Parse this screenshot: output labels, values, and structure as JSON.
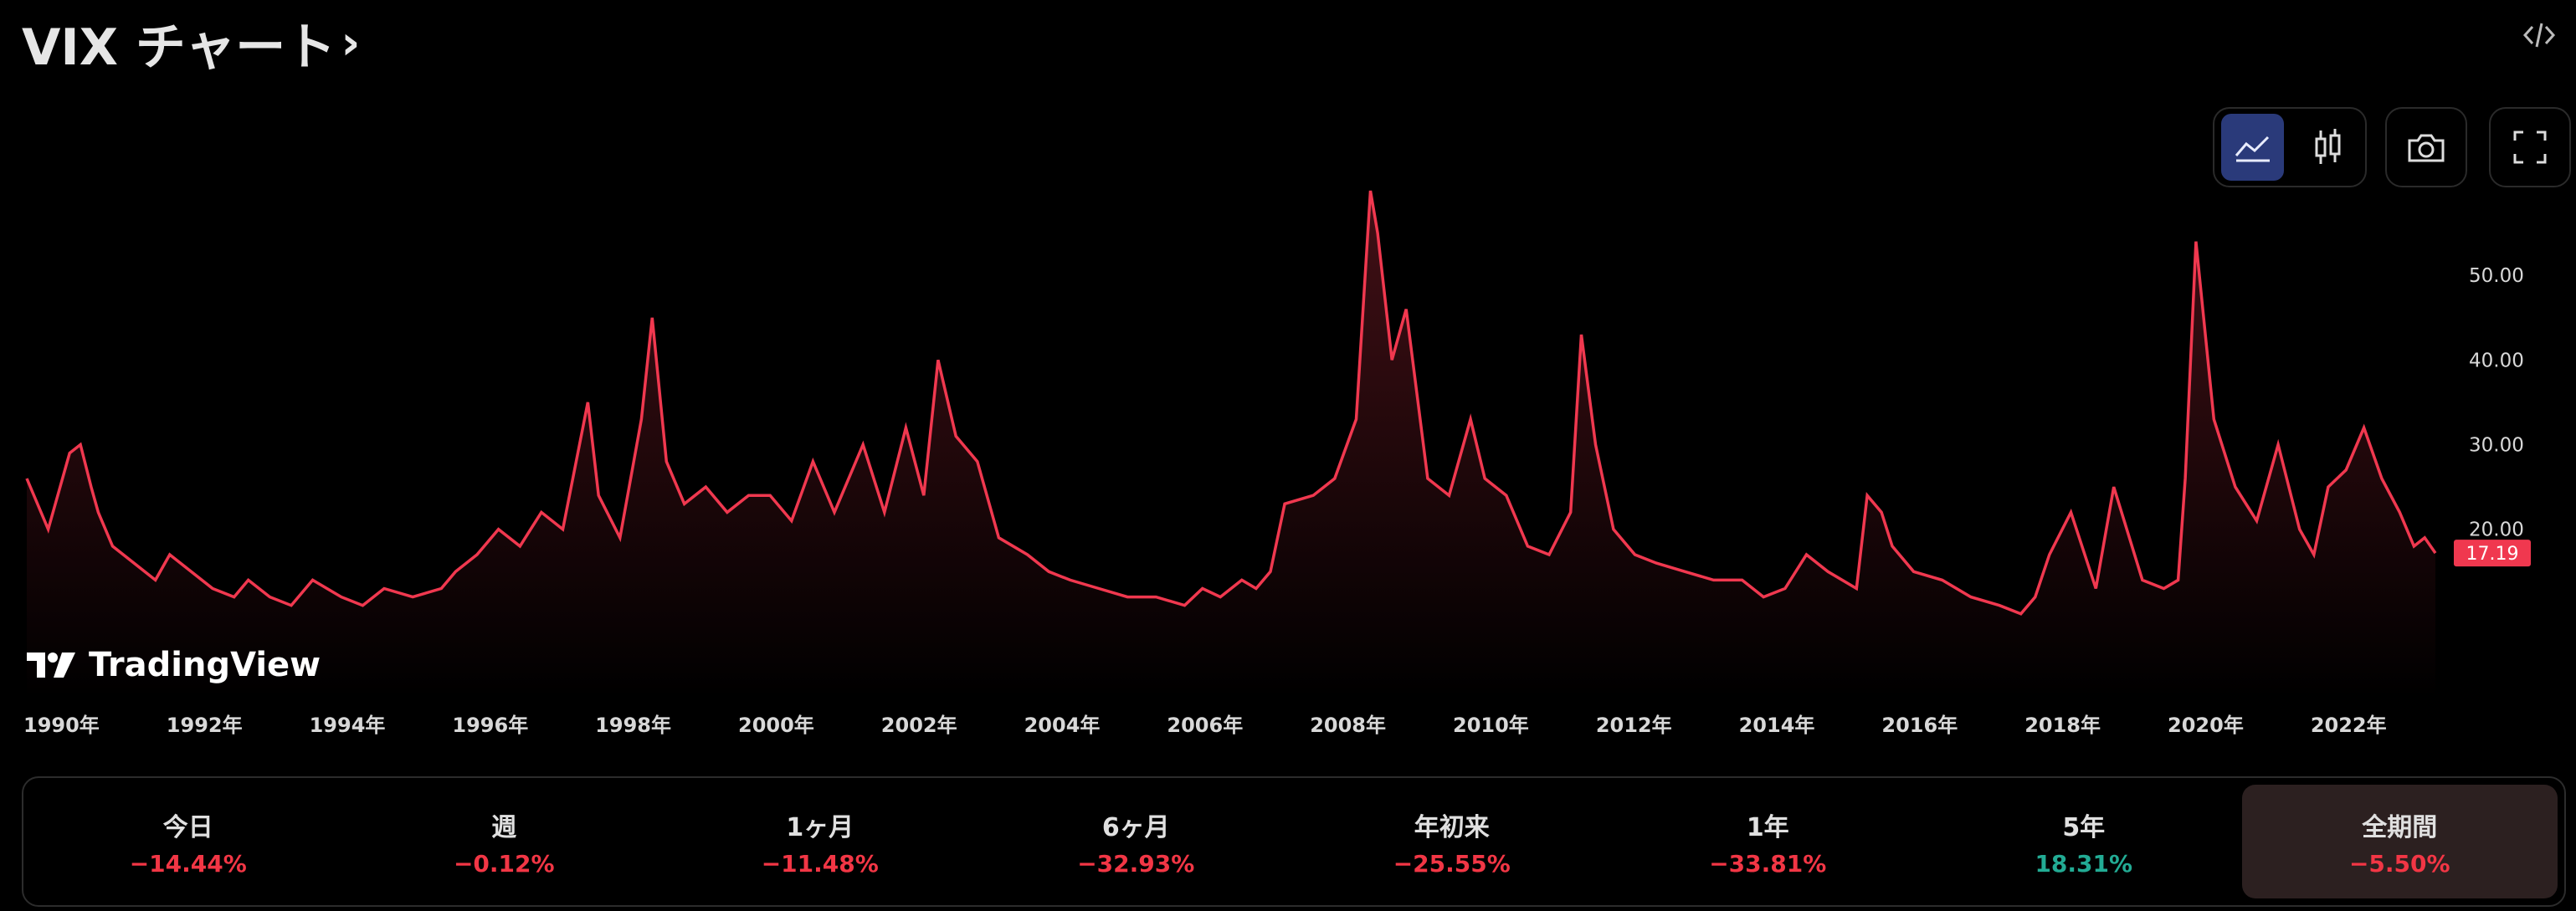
{
  "header": {
    "title": "VIX チャート",
    "chevron": "›",
    "embed_icon": "code-embed-icon"
  },
  "toolbar": {
    "area_chart_icon": "area-chart-icon",
    "candles_icon": "candlestick-icon",
    "snapshot_icon": "camera-icon",
    "fullscreen_icon": "fullscreen-icon"
  },
  "watermark": {
    "text": "TradingView"
  },
  "colors": {
    "line": "#f0384f",
    "last_price_bg": "#f0384f",
    "negative": "#f23645",
    "positive": "#22ab94",
    "active_tab": "#2a3a7a"
  },
  "chart_data": {
    "type": "area",
    "symbol": "VIX",
    "last_value": "17.19",
    "ylim": [
      0,
      60
    ],
    "xlim": [
      1990.0,
      2023.7
    ],
    "y_ticks": [
      "20.00",
      "30.00",
      "40.00",
      "50.00"
    ],
    "x_ticks": [
      "1990年",
      "1992年",
      "1994年",
      "1996年",
      "1998年",
      "2000年",
      "2002年",
      "2004年",
      "2006年",
      "2008年",
      "2010年",
      "2012年",
      "2014年",
      "2016年",
      "2018年",
      "2020年",
      "2022年"
    ],
    "series": [
      {
        "x": [
          1990.0,
          1990.3,
          1990.6,
          1990.75,
          1990.9,
          1991.0,
          1991.2,
          1991.5,
          1991.8,
          1992.0,
          1992.3,
          1992.6,
          1992.9,
          1993.1,
          1993.4,
          1993.7,
          1994.0,
          1994.2,
          1994.4,
          1994.7,
          1995.0,
          1995.4,
          1995.8,
          1996.0,
          1996.3,
          1996.6,
          1996.9,
          1997.2,
          1997.5,
          1997.85,
          1998.0,
          1998.3,
          1998.6,
          1998.75,
          1998.95,
          1999.2,
          1999.5,
          1999.8,
          2000.1,
          2000.4,
          2000.7,
          2001.0,
          2001.3,
          2001.7,
          2002.0,
          2002.3,
          2002.55,
          2002.75,
          2003.0,
          2003.3,
          2003.6,
          2004.0,
          2004.3,
          2004.6,
          2005.0,
          2005.4,
          2005.8,
          2006.2,
          2006.45,
          2006.7,
          2007.0,
          2007.2,
          2007.4,
          2007.6,
          2008.0,
          2008.3,
          2008.6,
          2008.8,
          2008.9,
          2009.1,
          2009.3,
          2009.6,
          2009.9,
          2010.2,
          2010.4,
          2010.7,
          2011.0,
          2011.3,
          2011.6,
          2011.75,
          2011.95,
          2012.2,
          2012.5,
          2012.8,
          2013.2,
          2013.6,
          2014.0,
          2014.3,
          2014.6,
          2014.9,
          2015.2,
          2015.6,
          2015.75,
          2015.95,
          2016.1,
          2016.4,
          2016.8,
          2017.2,
          2017.6,
          2017.9,
          2018.1,
          2018.3,
          2018.6,
          2018.95,
          2019.2,
          2019.6,
          2019.9,
          2020.1,
          2020.2,
          2020.35,
          2020.6,
          2020.9,
          2021.2,
          2021.5,
          2021.8,
          2022.0,
          2022.2,
          2022.45,
          2022.7,
          2022.95,
          2023.2,
          2023.4,
          2023.55,
          2023.7
        ],
        "y": [
          26,
          20,
          29,
          30,
          25,
          22,
          18,
          16,
          14,
          17,
          15,
          13,
          12,
          14,
          12,
          11,
          14,
          13,
          12,
          11,
          13,
          12,
          13,
          15,
          17,
          20,
          18,
          22,
          20,
          35,
          24,
          19,
          33,
          45,
          28,
          23,
          25,
          22,
          24,
          24,
          21,
          28,
          22,
          30,
          22,
          32,
          24,
          40,
          31,
          28,
          19,
          17,
          15,
          14,
          13,
          12,
          12,
          11,
          13,
          12,
          14,
          13,
          15,
          23,
          24,
          26,
          33,
          60,
          55,
          40,
          46,
          26,
          24,
          33,
          26,
          24,
          18,
          17,
          22,
          43,
          30,
          20,
          17,
          16,
          15,
          14,
          14,
          12,
          13,
          17,
          15,
          13,
          24,
          22,
          18,
          15,
          14,
          12,
          11,
          10,
          12,
          17,
          22,
          13,
          25,
          14,
          13,
          14,
          26,
          54,
          33,
          25,
          21,
          30,
          20,
          17,
          25,
          27,
          32,
          26,
          22,
          18,
          19,
          17.19
        ]
      }
    ]
  },
  "performance": [
    {
      "label": "今日",
      "value": "−14.44%",
      "trend": "down",
      "active": false
    },
    {
      "label": "週",
      "value": "−0.12%",
      "trend": "down",
      "active": false
    },
    {
      "label": "1ヶ月",
      "value": "−11.48%",
      "trend": "down",
      "active": false
    },
    {
      "label": "6ヶ月",
      "value": "−32.93%",
      "trend": "down",
      "active": false
    },
    {
      "label": "年初来",
      "value": "−25.55%",
      "trend": "down",
      "active": false
    },
    {
      "label": "1年",
      "value": "−33.81%",
      "trend": "down",
      "active": false
    },
    {
      "label": "5年",
      "value": "18.31%",
      "trend": "up",
      "active": false
    },
    {
      "label": "全期間",
      "value": "−5.50%",
      "trend": "down",
      "active": true
    }
  ]
}
